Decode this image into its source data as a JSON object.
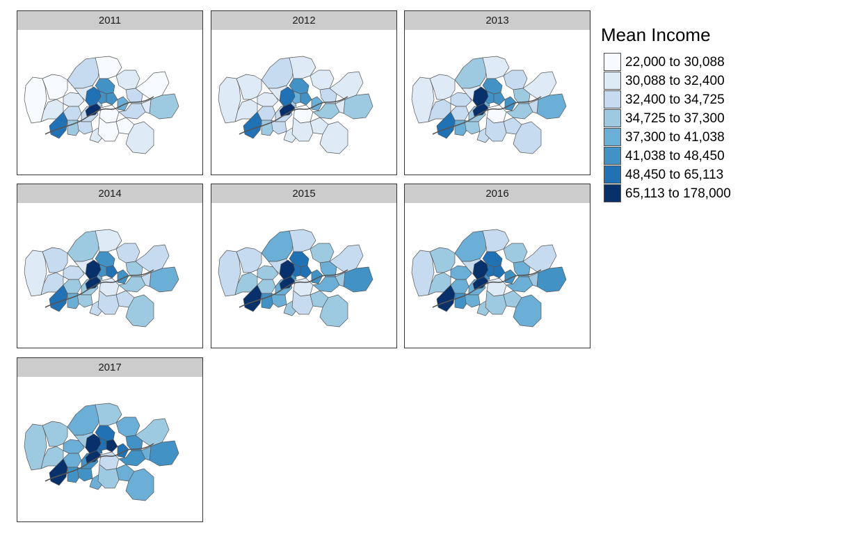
{
  "legend": {
    "title": "Mean Income",
    "items": [
      {
        "label": "22,000 to 30,088",
        "color": "#f7fbff"
      },
      {
        "label": "30,088 to 32,400",
        "color": "#deebf7"
      },
      {
        "label": "32,400 to 34,725",
        "color": "#c6dbef"
      },
      {
        "label": "34,725 to 37,300",
        "color": "#9ecae1"
      },
      {
        "label": "37,300 to 41,038",
        "color": "#6baed6"
      },
      {
        "label": "41,038 to 48,450",
        "color": "#4292c6"
      },
      {
        "label": "48,450 to 65,113",
        "color": "#2171b5"
      },
      {
        "label": "65,113 to 178,000",
        "color": "#08306b"
      }
    ]
  },
  "facets": [
    {
      "year": "2011",
      "classes": [
        0,
        0,
        2,
        0,
        1,
        5,
        1,
        1,
        1,
        2,
        2,
        3,
        5,
        6,
        7,
        5,
        4,
        2,
        6,
        3,
        2,
        1,
        0,
        0,
        2,
        0,
        1,
        0,
        3,
        1
      ]
    },
    {
      "year": "2012",
      "classes": [
        1,
        1,
        2,
        1,
        1,
        5,
        1,
        1,
        1,
        2,
        2,
        3,
        4,
        6,
        7,
        5,
        4,
        2,
        6,
        3,
        2,
        1,
        0,
        1,
        3,
        1,
        1,
        1,
        3,
        1
      ]
    },
    {
      "year": "2013",
      "classes": [
        1,
        1,
        3,
        1,
        2,
        5,
        2,
        1,
        2,
        2,
        3,
        4,
        5,
        7,
        7,
        5,
        5,
        3,
        6,
        4,
        3,
        2,
        0,
        2,
        3,
        2,
        2,
        1,
        4,
        2
      ]
    },
    {
      "year": "2014",
      "classes": [
        1,
        2,
        3,
        1,
        2,
        5,
        2,
        1,
        2,
        3,
        3,
        4,
        5,
        7,
        7,
        6,
        5,
        3,
        6,
        4,
        3,
        2,
        1,
        2,
        3,
        2,
        3,
        2,
        4,
        2
      ]
    },
    {
      "year": "2015",
      "classes": [
        2,
        2,
        4,
        2,
        3,
        6,
        3,
        2,
        3,
        3,
        4,
        5,
        6,
        7,
        7,
        6,
        5,
        4,
        7,
        5,
        4,
        3,
        1,
        3,
        4,
        2,
        3,
        2,
        5,
        3
      ]
    },
    {
      "year": "2016",
      "classes": [
        2,
        3,
        4,
        2,
        3,
        6,
        4,
        2,
        3,
        4,
        4,
        5,
        6,
        7,
        7,
        6,
        5,
        4,
        7,
        5,
        4,
        3,
        1,
        3,
        4,
        3,
        4,
        2,
        5,
        3
      ]
    },
    {
      "year": "2017",
      "classes": [
        3,
        3,
        4,
        3,
        4,
        6,
        4,
        3,
        3,
        4,
        5,
        6,
        6,
        7,
        7,
        7,
        6,
        5,
        7,
        5,
        5,
        4,
        2,
        4,
        5,
        3,
        4,
        3,
        5,
        4
      ]
    }
  ]
}
